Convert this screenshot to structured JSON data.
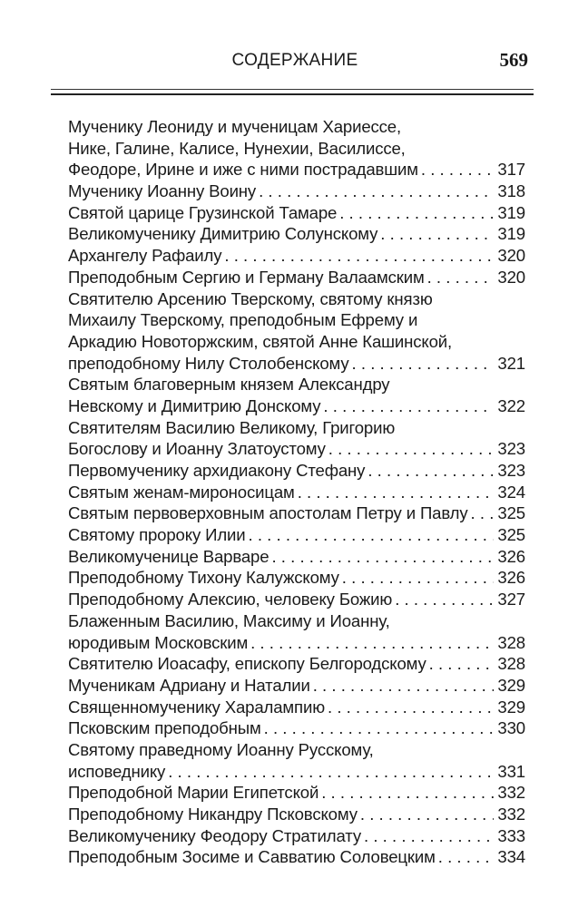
{
  "header": {
    "title": "СОДЕРЖАНИЕ",
    "page_number": "569"
  },
  "entries": [
    {
      "lines": [
        "Мученику Леониду и мученицам Хариессе,",
        "Нике, Галине, Калисе, Нунехии, Василиссе,",
        "Феодоре, Ирине и иже с ними пострадавшим"
      ],
      "page": "317"
    },
    {
      "lines": [
        "Мученику Иоанну Воину"
      ],
      "page": "318"
    },
    {
      "lines": [
        "Святой царице Грузинской Тамаре"
      ],
      "page": "319"
    },
    {
      "lines": [
        "Великомученику Димитрию Солунскому"
      ],
      "page": "319"
    },
    {
      "lines": [
        "Архангелу Рафаилу"
      ],
      "page": "320"
    },
    {
      "lines": [
        "Преподобным Сергию и Герману Валаамским"
      ],
      "page": "320"
    },
    {
      "lines": [
        "Святителю Арсению Тверскому, святому князю",
        "Михаилу Тверскому, преподобным Ефрему и",
        "Аркадию Новоторжским, святой Анне Кашинской,",
        "преподобному Нилу Столобенскому"
      ],
      "page": "321"
    },
    {
      "lines": [
        "Святым благоверным князем Александру",
        "Невскому и Димитрию Донскому"
      ],
      "page": "322"
    },
    {
      "lines": [
        "Святителям Василию Великому, Григорию",
        "Богослову и Иоанну Златоустому"
      ],
      "page": "323"
    },
    {
      "lines": [
        "Первомученику архидиакону Стефану"
      ],
      "page": "323"
    },
    {
      "lines": [
        "Святым женам-мироносицам"
      ],
      "page": "324"
    },
    {
      "lines": [
        "Святым первоверховным апостолам Петру и Павлу"
      ],
      "page": "325"
    },
    {
      "lines": [
        "Святому пророку Илии"
      ],
      "page": "325"
    },
    {
      "lines": [
        "Великомученице Варваре"
      ],
      "page": "326"
    },
    {
      "lines": [
        "Преподобному Тихону Калужскому"
      ],
      "page": "326"
    },
    {
      "lines": [
        "Преподобному Алексию, человеку Божию"
      ],
      "page": "327"
    },
    {
      "lines": [
        "Блаженным Василию, Максиму и Иоанну,",
        "юродивым Московским"
      ],
      "page": "328"
    },
    {
      "lines": [
        "Святителю Иоасафу, епископу Белгородскому"
      ],
      "page": "328"
    },
    {
      "lines": [
        "Мученикам Адриану и Наталии"
      ],
      "page": "329"
    },
    {
      "lines": [
        "Священномученику Харалампию"
      ],
      "page": "329"
    },
    {
      "lines": [
        "Псковским преподобным"
      ],
      "page": "330"
    },
    {
      "lines": [
        "Святому праведному Иоанну Русскому,",
        "исповеднику"
      ],
      "page": "331"
    },
    {
      "lines": [
        "Преподобной Марии Египетской"
      ],
      "page": "332"
    },
    {
      "lines": [
        "Преподобному Никандру Псковскому"
      ],
      "page": "332"
    },
    {
      "lines": [
        "Великомученику Феодору Стратилату"
      ],
      "page": "333"
    },
    {
      "lines": [
        "Преподобным Зосиме и Савватию Соловецким"
      ],
      "page": "334"
    }
  ]
}
